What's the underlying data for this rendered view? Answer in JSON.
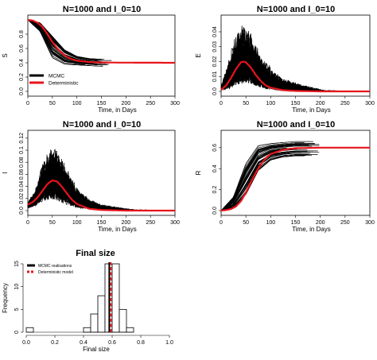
{
  "chart_data": [
    {
      "type": "line",
      "title": "N=1000 and I_0=10",
      "xlabel": "Time, in Days",
      "ylabel": "S",
      "xlim": [
        0,
        300
      ],
      "ylim": [
        0,
        1
      ],
      "xticks": [
        0,
        50,
        100,
        150,
        200,
        250,
        300
      ],
      "yticks": [
        0.0,
        0.2,
        0.4,
        0.6,
        0.8
      ],
      "legend": {
        "position": "bottom-left",
        "entries": [
          "MCMC",
          "Deterministic"
        ]
      },
      "series": [
        {
          "name": "MCMC",
          "color": "#000000",
          "x": [
            0,
            25,
            50,
            75,
            100,
            125,
            150
          ],
          "y": [
            1.0,
            0.9,
            0.62,
            0.48,
            0.43,
            0.41,
            0.4
          ],
          "spread": [
            0.0,
            0.06,
            0.15,
            0.1,
            0.06,
            0.05,
            0.05
          ]
        },
        {
          "name": "Deterministic",
          "color": "#e8141b",
          "x": [
            0,
            10,
            20,
            30,
            40,
            50,
            60,
            70,
            80,
            90,
            100,
            125,
            150,
            175,
            200,
            250,
            300
          ],
          "y": [
            1.0,
            0.99,
            0.96,
            0.9,
            0.8,
            0.69,
            0.6,
            0.53,
            0.48,
            0.45,
            0.43,
            0.41,
            0.405,
            0.403,
            0.402,
            0.401,
            0.4
          ]
        }
      ]
    },
    {
      "type": "line",
      "title": "N=1000 and I_0=10",
      "xlabel": "Time, in Days",
      "ylabel": "E",
      "xlim": [
        0,
        300
      ],
      "ylim": [
        0,
        0.048
      ],
      "xticks": [
        0,
        50,
        100,
        150,
        200,
        250,
        300
      ],
      "yticks": [
        0.0,
        0.01,
        0.02,
        0.03,
        0.04
      ],
      "series": [
        {
          "name": "MCMC",
          "color": "#000000",
          "x": [
            0,
            15,
            30,
            45,
            60,
            80,
            100,
            125,
            150,
            180,
            210
          ],
          "y": [
            0.002,
            0.008,
            0.016,
            0.02,
            0.017,
            0.01,
            0.006,
            0.003,
            0.002,
            0.001,
            0.0
          ],
          "spread": [
            0.001,
            0.012,
            0.022,
            0.026,
            0.02,
            0.014,
            0.01,
            0.006,
            0.004,
            0.002,
            0.001
          ]
        },
        {
          "name": "Deterministic",
          "color": "#e8141b",
          "x": [
            0,
            10,
            20,
            30,
            40,
            45,
            50,
            60,
            70,
            80,
            90,
            100,
            125,
            150,
            200,
            250,
            300
          ],
          "y": [
            0.001,
            0.004,
            0.009,
            0.015,
            0.0195,
            0.02,
            0.0195,
            0.016,
            0.011,
            0.007,
            0.004,
            0.0025,
            0.0008,
            0.0003,
            0.0,
            0.0,
            0.0
          ]
        }
      ]
    },
    {
      "type": "line",
      "title": "N=1000 and I_0=10",
      "xlabel": "Time, in Days",
      "ylabel": "I",
      "xlim": [
        0,
        300
      ],
      "ylim": [
        0,
        0.125
      ],
      "xticks": [
        0,
        50,
        100,
        150,
        200,
        250,
        300
      ],
      "yticks": [
        0.0,
        0.02,
        0.04,
        0.06,
        0.08,
        0.1,
        0.12
      ],
      "series": [
        {
          "name": "MCMC",
          "color": "#000000",
          "x": [
            0,
            15,
            30,
            45,
            60,
            80,
            100,
            125,
            150,
            180,
            220
          ],
          "y": [
            0.008,
            0.018,
            0.038,
            0.05,
            0.046,
            0.03,
            0.016,
            0.008,
            0.004,
            0.002,
            0.0
          ],
          "spread": [
            0.003,
            0.012,
            0.03,
            0.045,
            0.045,
            0.035,
            0.02,
            0.01,
            0.006,
            0.004,
            0.002
          ]
        },
        {
          "name": "Deterministic",
          "color": "#e8141b",
          "x": [
            0,
            10,
            20,
            30,
            40,
            50,
            60,
            70,
            80,
            90,
            100,
            125,
            150,
            200,
            250,
            300
          ],
          "y": [
            0.01,
            0.014,
            0.022,
            0.033,
            0.044,
            0.05,
            0.048,
            0.039,
            0.028,
            0.018,
            0.011,
            0.003,
            0.001,
            0.0,
            0.0,
            0.0
          ]
        }
      ]
    },
    {
      "type": "line",
      "title": "N=1000 and I_0=10",
      "xlabel": "Time, in Days",
      "ylabel": "R",
      "xlim": [
        0,
        300
      ],
      "ylim": [
        0,
        0.72
      ],
      "xticks": [
        0,
        50,
        100,
        150,
        200,
        250,
        300
      ],
      "yticks": [
        0.0,
        0.2,
        0.4,
        0.6
      ],
      "series": [
        {
          "name": "MCMC",
          "color": "#000000",
          "x": [
            0,
            25,
            50,
            75,
            100,
            125,
            150,
            175
          ],
          "y": [
            0.0,
            0.08,
            0.3,
            0.5,
            0.56,
            0.58,
            0.59,
            0.59
          ],
          "spread": [
            0.0,
            0.05,
            0.15,
            0.12,
            0.08,
            0.07,
            0.07,
            0.07
          ]
        },
        {
          "name": "Deterministic",
          "color": "#e8141b",
          "x": [
            0,
            10,
            20,
            30,
            40,
            50,
            60,
            70,
            80,
            90,
            100,
            125,
            150,
            200,
            250,
            300
          ],
          "y": [
            0.0,
            0.005,
            0.015,
            0.04,
            0.09,
            0.17,
            0.27,
            0.36,
            0.44,
            0.5,
            0.54,
            0.58,
            0.595,
            0.6,
            0.6,
            0.6
          ]
        }
      ]
    },
    {
      "type": "bar",
      "title": "Final size",
      "xlabel": "Final size",
      "ylabel": "Frequency",
      "xlim": [
        0,
        1
      ],
      "ylim": [
        0,
        15
      ],
      "xticks": [
        0.0,
        0.2,
        0.4,
        0.6,
        0.8,
        1.0
      ],
      "yticks": [
        0,
        5,
        10,
        15
      ],
      "bins": [
        {
          "x0": 0.0,
          "x1": 0.05,
          "count": 1
        },
        {
          "x0": 0.05,
          "x1": 0.1,
          "count": 0
        },
        {
          "x0": 0.1,
          "x1": 0.15,
          "count": 0
        },
        {
          "x0": 0.15,
          "x1": 0.2,
          "count": 0
        },
        {
          "x0": 0.2,
          "x1": 0.25,
          "count": 0
        },
        {
          "x0": 0.25,
          "x1": 0.3,
          "count": 0
        },
        {
          "x0": 0.3,
          "x1": 0.35,
          "count": 0
        },
        {
          "x0": 0.35,
          "x1": 0.4,
          "count": 0
        },
        {
          "x0": 0.4,
          "x1": 0.45,
          "count": 1
        },
        {
          "x0": 0.45,
          "x1": 0.5,
          "count": 4
        },
        {
          "x0": 0.5,
          "x1": 0.55,
          "count": 8
        },
        {
          "x0": 0.55,
          "x1": 0.6,
          "count": 15
        },
        {
          "x0": 0.6,
          "x1": 0.65,
          "count": 15
        },
        {
          "x0": 0.65,
          "x1": 0.7,
          "count": 5
        },
        {
          "x0": 0.7,
          "x1": 0.75,
          "count": 1
        }
      ],
      "vlines": [
        {
          "name": "MCMC realisations",
          "x": 0.58,
          "color": "#000000",
          "style": "solid"
        },
        {
          "name": "Deterministic model",
          "x": 0.59,
          "color": "#e8141b",
          "style": "dashed"
        }
      ],
      "legend": {
        "position": "top-left",
        "entries": [
          "MCMC realisations",
          "Deterministic model"
        ]
      }
    }
  ]
}
